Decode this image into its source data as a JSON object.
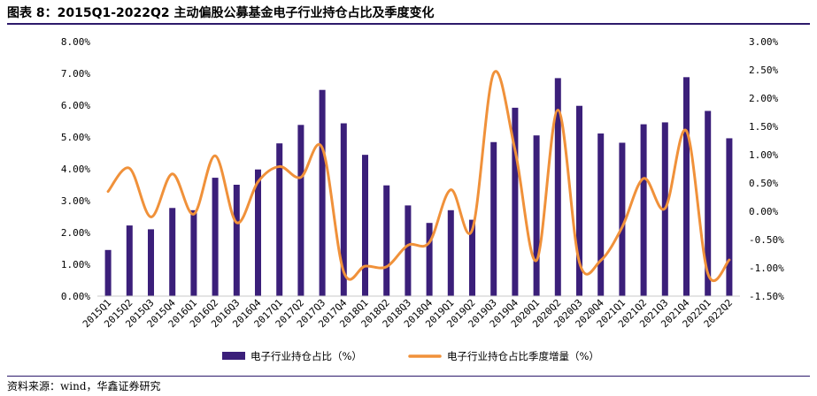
{
  "title": "图表 8：2015Q1-2022Q2 主动偏股公募基金电子行业持仓占比及季度变化",
  "source": "资料来源：wind，华鑫证券研究",
  "colors": {
    "bar": "#3b1f7a",
    "line": "#f0913a",
    "rule": "#2d1a6b",
    "axis": "#c8c8c8"
  },
  "chart_data": {
    "type": "bar+line",
    "categories": [
      "2015Q1",
      "2015Q2",
      "2015Q3",
      "2015Q4",
      "2016Q1",
      "2016Q2",
      "2016Q3",
      "2016Q4",
      "2017Q1",
      "2017Q2",
      "2017Q3",
      "2017Q4",
      "2018Q1",
      "2018Q2",
      "2018Q3",
      "2018Q4",
      "2019Q1",
      "2019Q2",
      "2019Q3",
      "2019Q4",
      "2020Q1",
      "2020Q2",
      "2020Q3",
      "2020Q4",
      "2021Q1",
      "2021Q2",
      "2021Q3",
      "2021Q4",
      "2022Q1",
      "2022Q2"
    ],
    "series": [
      {
        "name": "电子行业持仓占比（%）",
        "type": "bar",
        "axis": "left",
        "values": [
          1.45,
          2.22,
          2.1,
          2.77,
          2.7,
          3.72,
          3.5,
          3.98,
          4.8,
          5.38,
          6.48,
          5.43,
          4.44,
          3.48,
          2.85,
          2.3,
          2.7,
          2.4,
          4.84,
          5.92,
          5.05,
          6.85,
          5.98,
          5.11,
          4.82,
          5.4,
          5.46,
          6.88,
          5.82,
          4.96
        ]
      },
      {
        "name": "电子行业持仓占比季度增量（%）",
        "type": "line",
        "axis": "right",
        "values": [
          0.35,
          0.76,
          -0.1,
          0.66,
          -0.05,
          0.98,
          -0.2,
          0.52,
          0.79,
          0.6,
          1.12,
          -1.07,
          -0.97,
          -0.98,
          -0.6,
          -0.55,
          0.38,
          -0.33,
          2.44,
          1.08,
          -0.87,
          1.79,
          -0.9,
          -0.87,
          -0.28,
          0.58,
          0.05,
          1.42,
          -1.1,
          -0.86
        ]
      }
    ],
    "y_left": {
      "min": 0,
      "max": 8,
      "step": 1,
      "ticks": [
        "0.00%",
        "1.00%",
        "2.00%",
        "3.00%",
        "4.00%",
        "5.00%",
        "6.00%",
        "7.00%",
        "8.00%"
      ]
    },
    "y_right": {
      "min": -1.5,
      "max": 3.0,
      "step": 0.5,
      "ticks": [
        "-1.50%",
        "-1.00%",
        "-0.50%",
        "0.00%",
        "0.50%",
        "1.00%",
        "1.50%",
        "2.00%",
        "2.50%",
        "3.00%"
      ]
    },
    "legend_position": "bottom",
    "grid": false
  }
}
